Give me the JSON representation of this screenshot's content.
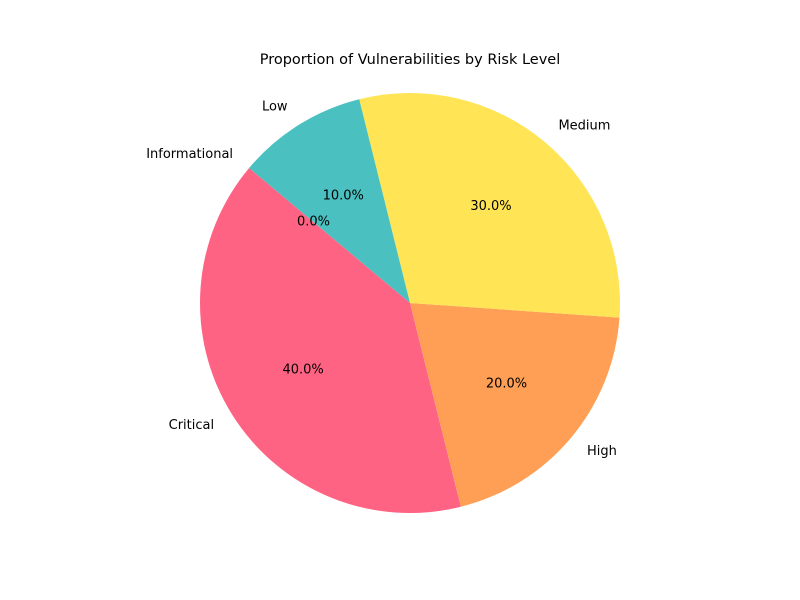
{
  "chart_data": {
    "type": "pie",
    "title": "Proportion of Vulnerabilities by Risk Level",
    "start_angle_deg": 140,
    "direction": "counterclockwise",
    "slices": [
      {
        "label": "Critical",
        "value": 40,
        "pct_label": "40.0%",
        "color": "#FF6384"
      },
      {
        "label": "High",
        "value": 20,
        "pct_label": "20.0%",
        "color": "#FF9F55"
      },
      {
        "label": "Medium",
        "value": 30,
        "pct_label": "30.0%",
        "color": "#FFE556"
      },
      {
        "label": "Low",
        "value": 10,
        "pct_label": "10.0%",
        "color": "#4BC0C0"
      },
      {
        "label": "Informational",
        "value": 0,
        "pct_label": "0.0%",
        "color": "#9966FF"
      }
    ]
  }
}
